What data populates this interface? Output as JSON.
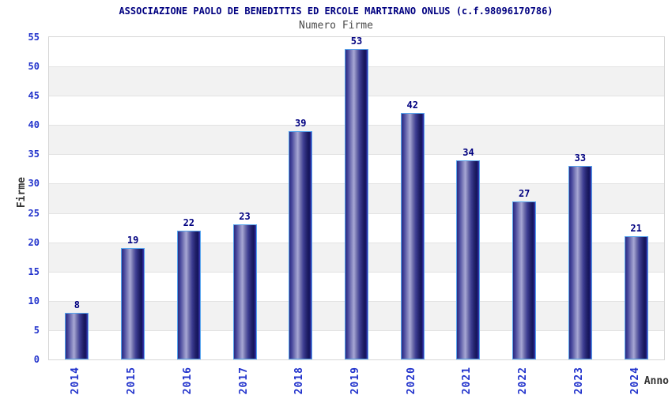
{
  "chart_data": {
    "type": "bar",
    "title": "ASSOCIAZIONE PAOLO DE BENEDITTIS ED ERCOLE MARTIRANO ONLUS (c.f.98096170786)",
    "subtitle": "Numero Firme",
    "xlabel": "Anno",
    "ylabel": "Firme",
    "categories": [
      "2014",
      "2015",
      "2016",
      "2017",
      "2018",
      "2019",
      "2020",
      "2021",
      "2022",
      "2023",
      "2024"
    ],
    "values": [
      8,
      19,
      22,
      23,
      39,
      53,
      42,
      34,
      27,
      33,
      21
    ],
    "ylim": [
      0,
      55
    ],
    "yticks": [
      0,
      5,
      10,
      15,
      20,
      25,
      30,
      35,
      40,
      45,
      50,
      55
    ],
    "legend": "none",
    "grid": "horizontal-bands-every-5",
    "colors": {
      "title": "#000080",
      "subtitle": "#4a4a4a",
      "axis_tick": "#2233cc",
      "value_label": "#000080",
      "axis_label": "#333333",
      "bar_dark": "#14145a",
      "bar_light": "#a7a7d4",
      "bar_border": "#57a5ee",
      "band_fill": "#f2f2f2",
      "gridline": "#e3e3e3",
      "plot_border": "#d6d6d6"
    }
  }
}
